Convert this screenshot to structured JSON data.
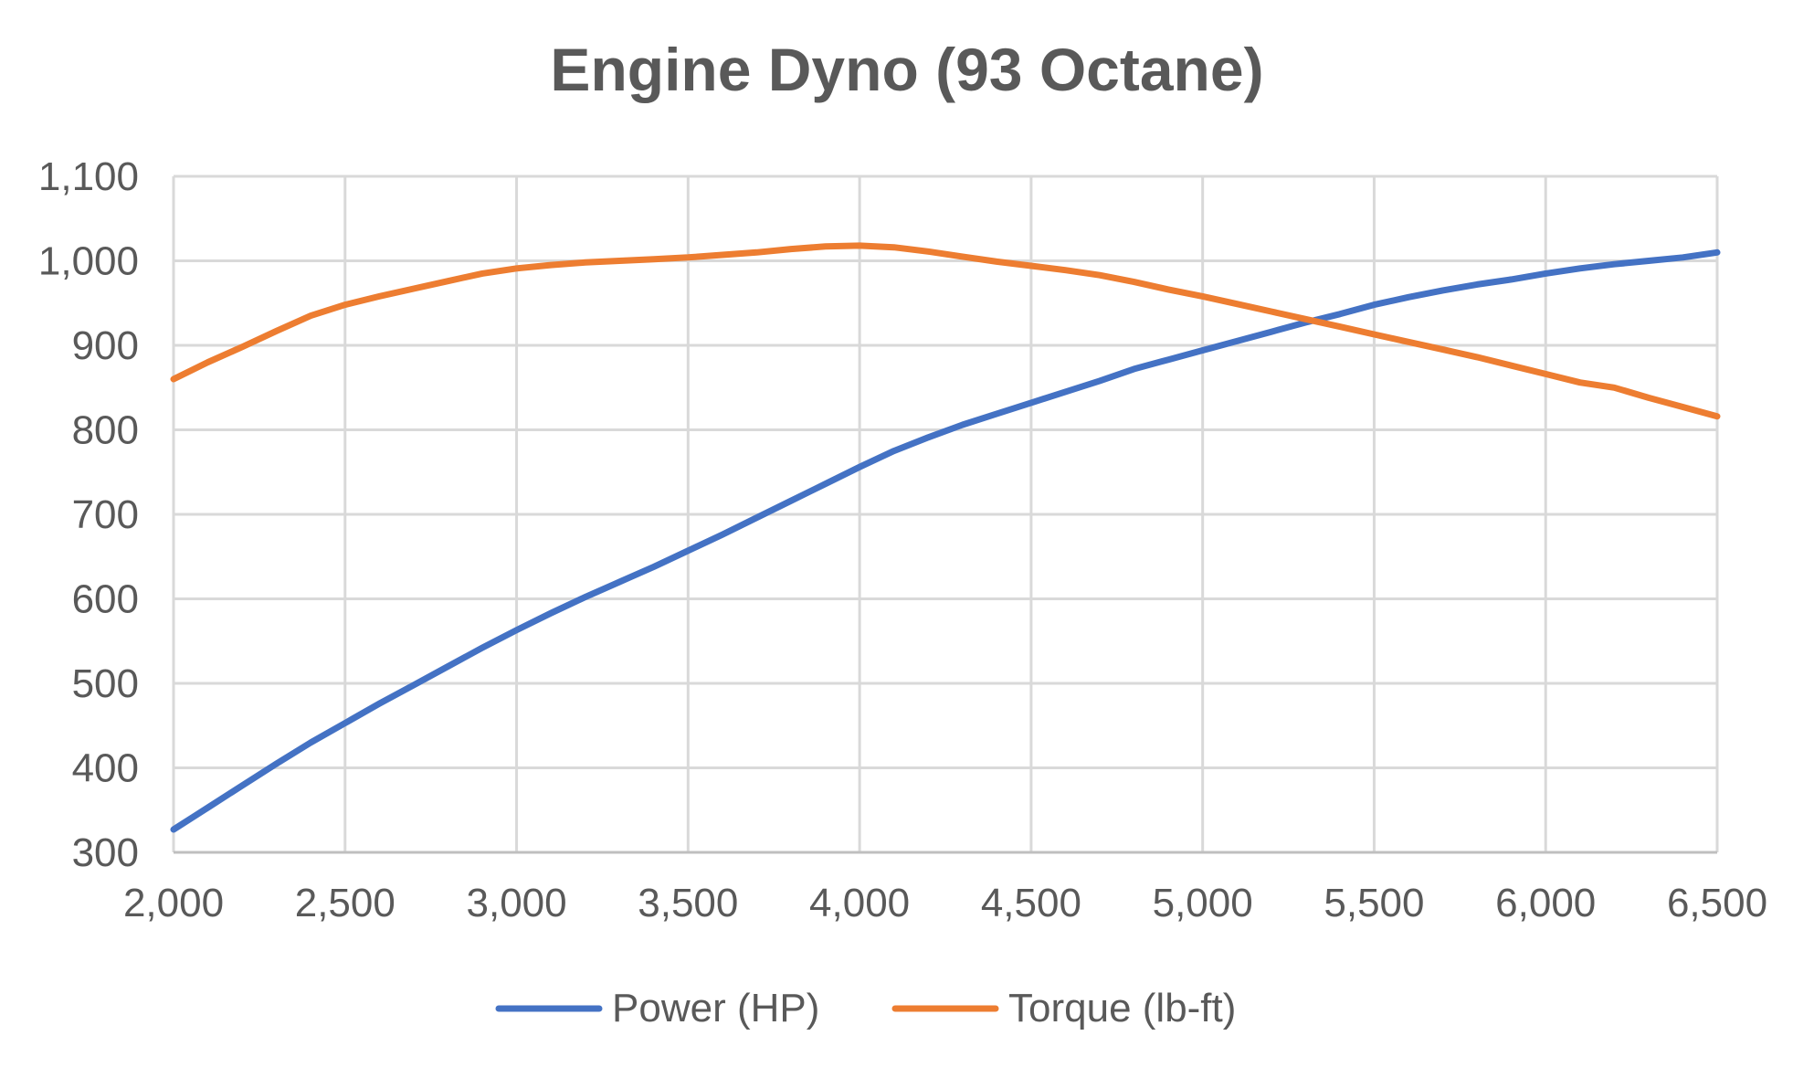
{
  "chart_data": {
    "type": "line",
    "title": "Engine Dyno (93 Octane)",
    "xlabel": "",
    "ylabel": "",
    "xlim": [
      2000,
      6500
    ],
    "ylim": [
      300,
      1100
    ],
    "x_ticks": [
      2000,
      2500,
      3000,
      3500,
      4000,
      4500,
      5000,
      5500,
      6000,
      6500
    ],
    "x_tick_labels": [
      "2,000",
      "2,500",
      "3,000",
      "3,500",
      "4,000",
      "4,500",
      "5,000",
      "5,500",
      "6,000",
      "6,500"
    ],
    "y_ticks": [
      300,
      400,
      500,
      600,
      700,
      800,
      900,
      1000,
      1100
    ],
    "y_tick_labels": [
      "300",
      "400",
      "500",
      "600",
      "700",
      "800",
      "900",
      "1,000",
      "1,100"
    ],
    "grid": true,
    "legend_position": "bottom",
    "x": [
      2000,
      2100,
      2200,
      2300,
      2400,
      2500,
      2600,
      2700,
      2800,
      2900,
      3000,
      3100,
      3200,
      3300,
      3400,
      3500,
      3600,
      3700,
      3800,
      3900,
      4000,
      4100,
      4200,
      4300,
      4400,
      4500,
      4600,
      4700,
      4800,
      4900,
      5000,
      5100,
      5200,
      5300,
      5400,
      5500,
      5600,
      5700,
      5800,
      5900,
      6000,
      6100,
      6200,
      6300,
      6400,
      6500
    ],
    "series": [
      {
        "name": "Power (HP)",
        "color": "#4472C4",
        "values": [
          327,
          353,
          379,
          405,
          430,
          453,
          476,
          498,
          520,
          542,
          563,
          583,
          602,
          620,
          638,
          657,
          676,
          696,
          716,
          736,
          756,
          775,
          791,
          806,
          819,
          832,
          845,
          858,
          872,
          883,
          894,
          905,
          916,
          927,
          937,
          948,
          957,
          965,
          972,
          978,
          985,
          991,
          996,
          1000,
          1004,
          1010
        ]
      },
      {
        "name": "Torque (lb-ft)",
        "color": "#ED7D31",
        "values": [
          860,
          880,
          898,
          917,
          935,
          948,
          958,
          967,
          976,
          985,
          991,
          995,
          998,
          1000,
          1002,
          1004,
          1007,
          1010,
          1014,
          1017,
          1018,
          1016,
          1011,
          1005,
          999,
          994,
          989,
          983,
          975,
          966,
          958,
          949,
          940,
          931,
          922,
          913,
          904,
          895,
          886,
          876,
          866,
          856,
          850,
          838,
          827,
          816
        ]
      }
    ]
  }
}
